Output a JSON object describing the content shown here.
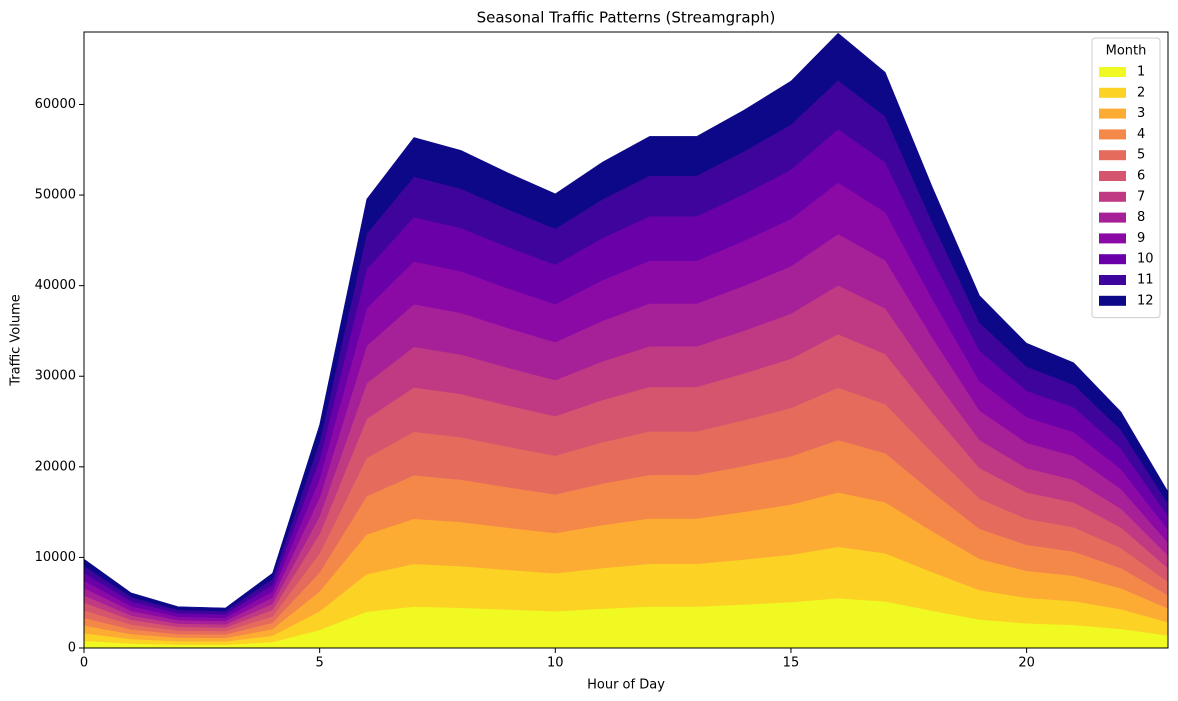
{
  "chart_data": {
    "type": "stacked_area",
    "title": "Seasonal Traffic Patterns (Streamgraph)",
    "x_label": "Hour of Day",
    "y_label": "Traffic Volume",
    "x": [
      0,
      1,
      2,
      3,
      4,
      5,
      6,
      7,
      8,
      9,
      10,
      11,
      12,
      13,
      14,
      15,
      16,
      17,
      18,
      19,
      20,
      21,
      22,
      23
    ],
    "xlim": [
      0,
      23
    ],
    "ylim": [
      0,
      68000
    ],
    "xticks": [
      0,
      5,
      10,
      15,
      20
    ],
    "yticks": [
      0,
      10000,
      20000,
      30000,
      40000,
      50000,
      60000
    ],
    "grid": false,
    "legend_title": "Month",
    "legend_position": "upper-right",
    "series": [
      {
        "name": "1",
        "color": "#f0f921",
        "values": [
          800,
          490,
          370,
          360,
          670,
          2000,
          4020,
          4570,
          4450,
          4250,
          4060,
          4350,
          4580,
          4580,
          4810,
          5070,
          5500,
          5150,
          4120,
          3150,
          2730,
          2550,
          2110,
          1400
        ]
      },
      {
        "name": "2",
        "color": "#fcd225",
        "values": [
          820,
          510,
          380,
          370,
          690,
          2060,
          4140,
          4710,
          4590,
          4380,
          4190,
          4480,
          4720,
          4720,
          4960,
          5230,
          5670,
          5310,
          4250,
          3250,
          2810,
          2630,
          2180,
          1440
        ]
      },
      {
        "name": "3",
        "color": "#fdac33",
        "values": [
          870,
          540,
          400,
          390,
          730,
          2180,
          4390,
          4990,
          4870,
          4640,
          4440,
          4750,
          5000,
          5000,
          5260,
          5540,
          6010,
          5630,
          4500,
          3440,
          2980,
          2790,
          2310,
          1530
        ]
      },
      {
        "name": "4",
        "color": "#f48849",
        "values": [
          840,
          520,
          390,
          380,
          700,
          2100,
          4220,
          4800,
          4680,
          4470,
          4270,
          4570,
          4810,
          4810,
          5060,
          5330,
          5780,
          5420,
          4340,
          3320,
          2870,
          2680,
          2220,
          1470
        ]
      },
      {
        "name": "5",
        "color": "#e56b5d",
        "values": [
          840,
          520,
          390,
          380,
          700,
          2100,
          4220,
          4800,
          4680,
          4470,
          4270,
          4570,
          4810,
          4810,
          5060,
          5330,
          5780,
          5420,
          4340,
          3320,
          2870,
          2680,
          2220,
          1470
        ]
      },
      {
        "name": "6",
        "color": "#d5546e",
        "values": [
          850,
          530,
          400,
          380,
          720,
          2140,
          4310,
          4900,
          4770,
          4560,
          4360,
          4660,
          4910,
          4910,
          5160,
          5440,
          5900,
          5520,
          4420,
          3380,
          2920,
          2740,
          2270,
          1500
        ]
      },
      {
        "name": "7",
        "color": "#c03a83",
        "values": [
          780,
          480,
          360,
          350,
          660,
          1960,
          3930,
          4470,
          4360,
          4160,
          3980,
          4260,
          4480,
          4480,
          4710,
          4970,
          5390,
          5040,
          4040,
          3090,
          2670,
          2500,
          2070,
          1370
        ]
      },
      {
        "name": "8",
        "color": "#a62098",
        "values": [
          820,
          510,
          380,
          370,
          690,
          2060,
          4140,
          4710,
          4590,
          4380,
          4190,
          4480,
          4720,
          4720,
          4960,
          5230,
          5670,
          5310,
          4250,
          3250,
          2810,
          2630,
          2180,
          1440
        ]
      },
      {
        "name": "9",
        "color": "#8b0aa5",
        "values": [
          820,
          510,
          380,
          370,
          690,
          2060,
          4140,
          4710,
          4590,
          4380,
          4190,
          4480,
          4720,
          4720,
          4960,
          5230,
          5670,
          5310,
          4250,
          3250,
          2810,
          2630,
          2180,
          1440
        ]
      },
      {
        "name": "10",
        "color": "#6a00a8",
        "values": [
          850,
          530,
          400,
          380,
          720,
          2140,
          4310,
          4900,
          4770,
          4560,
          4360,
          4660,
          4910,
          4910,
          5160,
          5440,
          5900,
          5520,
          4420,
          3380,
          2920,
          2740,
          2270,
          1500
        ]
      },
      {
        "name": "11",
        "color": "#3e049c",
        "values": [
          780,
          480,
          360,
          350,
          660,
          1960,
          3930,
          4470,
          4360,
          4160,
          3980,
          4260,
          4480,
          4480,
          4710,
          4970,
          5390,
          5040,
          4040,
          3090,
          2670,
          2500,
          2070,
          1370
        ]
      },
      {
        "name": "12",
        "color": "#0d0887",
        "values": [
          750,
          470,
          350,
          340,
          630,
          1900,
          3810,
          4330,
          4220,
          4030,
          3850,
          4120,
          4340,
          4340,
          4560,
          4810,
          5220,
          4890,
          3910,
          2990,
          2590,
          2420,
          2010,
          1320
        ]
      }
    ]
  }
}
